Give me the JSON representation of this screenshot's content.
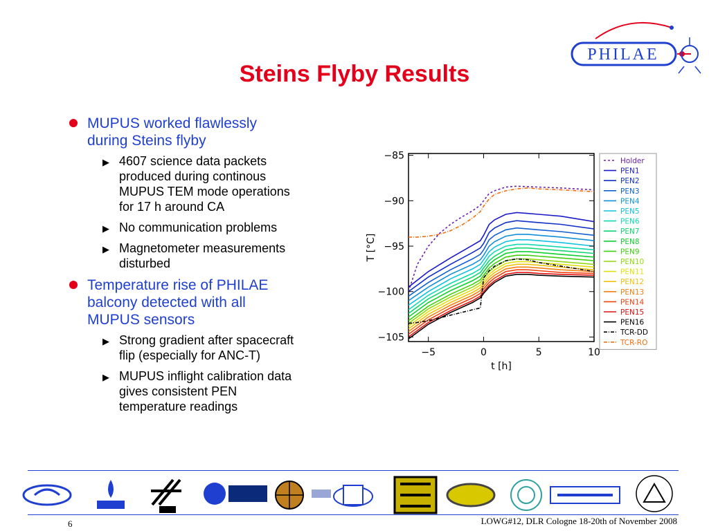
{
  "slide": {
    "title": "Steins Flyby Results",
    "page_number": "6",
    "footer": "LOWG#12, DLR Cologne 18-20th of  November 2008"
  },
  "brand": {
    "philae_logo_text": "PHILAE",
    "accent_red": "#e3001b",
    "accent_blue": "#1f3fd1"
  },
  "bullets": [
    {
      "text_lines": [
        "MUPUS worked flawlessly",
        "during Steins flyby"
      ],
      "sub": [
        {
          "lines": [
            "4607 science data packets",
            "produced during continous",
            "MUPUS TEM mode operations",
            "for 17 h around CA"
          ]
        },
        {
          "lines": [
            "No communication problems"
          ]
        },
        {
          "lines": [
            "Magnetometer measurements",
            "disturbed"
          ]
        }
      ]
    },
    {
      "text_lines": [
        "Temperature rise of PHILAE",
        "balcony detected with all",
        "MUPUS sensors"
      ],
      "sub": [
        {
          "lines": [
            "Strong gradient after spacecraft",
            "flip (especially for ANC-T)"
          ]
        },
        {
          "lines": [
            "MUPUS inflight calibration data",
            "gives consistent PEN",
            "temperature readings"
          ]
        }
      ]
    }
  ],
  "chart_data": {
    "type": "line",
    "xlabel": "t [h]",
    "ylabel": "T [°C]",
    "xlim": [
      -6.8,
      10
    ],
    "ylim": [
      -105.5,
      -84.8
    ],
    "xticks": [
      -5,
      0,
      5,
      10
    ],
    "yticks": [
      -85,
      -90,
      -95,
      -100,
      -105
    ],
    "legend_position": "right",
    "series": [
      {
        "name": "Holder",
        "color": "#6b1fb0",
        "dash": "dash",
        "x": [
          -6.8,
          -6,
          -5,
          -4,
          -3,
          -2,
          -1,
          -0.3,
          0,
          0.5,
          1,
          2,
          3,
          5,
          7,
          10
        ],
        "y": [
          -100,
          -97,
          -95,
          -93.6,
          -92.6,
          -91.8,
          -91.1,
          -90.5,
          -90,
          -89.2,
          -88.9,
          -88.5,
          -88.4,
          -88.5,
          -88.6,
          -88.8
        ]
      },
      {
        "name": "PEN1",
        "color": "#1a1ac8",
        "x": [
          -6.8,
          -5,
          -3,
          -1,
          -0.3,
          0,
          0.5,
          1,
          2,
          3,
          4,
          5,
          7,
          10
        ],
        "y": [
          -99.5,
          -97.8,
          -96.3,
          -94.9,
          -94.4,
          -93.8,
          -92.6,
          -92.1,
          -91.5,
          -91.3,
          -91.4,
          -91.5,
          -91.7,
          -92.3
        ]
      },
      {
        "name": "PEN2",
        "color": "#1030c8",
        "x": [
          -6.8,
          -5,
          -3,
          -1,
          -0.3,
          0,
          0.5,
          1,
          2,
          3,
          4,
          5,
          7,
          10
        ],
        "y": [
          -100.0,
          -98.4,
          -97.0,
          -95.7,
          -95.2,
          -94.7,
          -93.5,
          -93.0,
          -92.4,
          -92.2,
          -92.3,
          -92.4,
          -92.6,
          -93.1
        ]
      },
      {
        "name": "PEN3",
        "color": "#1060d0",
        "x": [
          -6.8,
          -5,
          -3,
          -1,
          -0.3,
          0,
          0.5,
          1,
          2,
          3,
          4,
          5,
          7,
          10
        ],
        "y": [
          -100.5,
          -99.0,
          -97.6,
          -96.4,
          -95.9,
          -95.4,
          -94.3,
          -93.8,
          -93.2,
          -93.0,
          -93.1,
          -93.2,
          -93.4,
          -93.8
        ]
      },
      {
        "name": "PEN4",
        "color": "#1090d8",
        "x": [
          -6.8,
          -5,
          -3,
          -1,
          -0.3,
          0,
          0.5,
          1,
          2,
          3,
          4,
          5,
          7,
          10
        ],
        "y": [
          -101.0,
          -99.5,
          -98.1,
          -97.0,
          -96.5,
          -96.0,
          -95.0,
          -94.5,
          -93.9,
          -93.7,
          -93.7,
          -93.8,
          -94.0,
          -94.4
        ]
      },
      {
        "name": "PEN5",
        "color": "#10c0e0",
        "x": [
          -6.8,
          -5,
          -3,
          -1,
          -0.3,
          0,
          0.5,
          1,
          2,
          3,
          4,
          5,
          7,
          10
        ],
        "y": [
          -101.5,
          -100.0,
          -98.6,
          -97.5,
          -97.0,
          -96.5,
          -95.6,
          -95.1,
          -94.5,
          -94.3,
          -94.3,
          -94.4,
          -94.6,
          -95.0
        ]
      },
      {
        "name": "PEN6",
        "color": "#10d8b0",
        "x": [
          -6.8,
          -5,
          -3,
          -1,
          -0.3,
          0,
          0.5,
          1,
          2,
          3,
          4,
          5,
          7,
          10
        ],
        "y": [
          -102.0,
          -100.4,
          -99.1,
          -98.0,
          -97.5,
          -97.0,
          -96.1,
          -95.6,
          -95.0,
          -94.8,
          -94.8,
          -94.9,
          -95.1,
          -95.4
        ]
      },
      {
        "name": "PEN7",
        "color": "#10d870",
        "x": [
          -6.8,
          -5,
          -3,
          -1,
          -0.3,
          0,
          0.5,
          1,
          2,
          3,
          4,
          5,
          7,
          10
        ],
        "y": [
          -102.4,
          -100.8,
          -99.5,
          -98.4,
          -97.9,
          -97.4,
          -96.6,
          -96.1,
          -95.4,
          -95.2,
          -95.2,
          -95.3,
          -95.5,
          -95.8
        ]
      },
      {
        "name": "PEN8",
        "color": "#10d030",
        "x": [
          -6.8,
          -5,
          -3,
          -1,
          -0.3,
          0,
          0.5,
          1,
          2,
          3,
          4,
          5,
          7,
          10
        ],
        "y": [
          -102.8,
          -101.2,
          -99.9,
          -98.8,
          -98.3,
          -97.8,
          -97.0,
          -96.5,
          -95.8,
          -95.6,
          -95.6,
          -95.7,
          -95.9,
          -96.2
        ]
      },
      {
        "name": "PEN9",
        "color": "#40d010",
        "x": [
          -6.8,
          -5,
          -3,
          -1,
          -0.3,
          0,
          0.5,
          1,
          2,
          3,
          4,
          5,
          7,
          10
        ],
        "y": [
          -103.2,
          -101.6,
          -100.3,
          -99.2,
          -98.7,
          -98.2,
          -97.4,
          -96.9,
          -96.2,
          -96.0,
          -96.0,
          -96.1,
          -96.3,
          -96.6
        ]
      },
      {
        "name": "PEN10",
        "color": "#90d810",
        "x": [
          -6.8,
          -5,
          -3,
          -1,
          -0.3,
          0,
          0.5,
          1,
          2,
          3,
          4,
          5,
          7,
          10
        ],
        "y": [
          -103.5,
          -101.9,
          -100.6,
          -99.5,
          -99.0,
          -98.5,
          -97.8,
          -97.3,
          -96.6,
          -96.4,
          -96.4,
          -96.5,
          -96.7,
          -97.0
        ]
      },
      {
        "name": "PEN11",
        "color": "#e0e010",
        "x": [
          -6.8,
          -5,
          -3,
          -1,
          -0.3,
          0,
          0.5,
          1,
          2,
          3,
          4,
          5,
          7,
          10
        ],
        "y": [
          -103.8,
          -102.2,
          -100.9,
          -99.8,
          -99.3,
          -98.8,
          -98.1,
          -97.6,
          -96.9,
          -96.7,
          -96.7,
          -96.8,
          -97.0,
          -97.3
        ]
      },
      {
        "name": "PEN12",
        "color": "#f0c010",
        "x": [
          -6.8,
          -5,
          -3,
          -1,
          -0.3,
          0,
          0.5,
          1,
          2,
          3,
          4,
          5,
          7,
          10
        ],
        "y": [
          -104.1,
          -102.5,
          -101.2,
          -100.1,
          -99.6,
          -99.1,
          -98.4,
          -97.9,
          -97.2,
          -97.0,
          -97.0,
          -97.1,
          -97.3,
          -97.6
        ]
      },
      {
        "name": "PEN13",
        "color": "#f08010",
        "x": [
          -6.8,
          -5,
          -3,
          -1,
          -0.3,
          0,
          0.5,
          1,
          2,
          3,
          4,
          5,
          7,
          10
        ],
        "y": [
          -104.4,
          -102.8,
          -101.5,
          -100.4,
          -99.9,
          -99.4,
          -98.7,
          -98.2,
          -97.5,
          -97.3,
          -97.3,
          -97.4,
          -97.6,
          -97.8
        ]
      },
      {
        "name": "PEN14",
        "color": "#f04010",
        "x": [
          -6.8,
          -5,
          -3,
          -1,
          -0.3,
          0,
          0.5,
          1,
          2,
          3,
          4,
          5,
          7,
          10
        ],
        "y": [
          -104.7,
          -103.1,
          -101.8,
          -100.7,
          -100.2,
          -99.7,
          -99.0,
          -98.5,
          -97.8,
          -97.6,
          -97.6,
          -97.7,
          -97.9,
          -98.0
        ]
      },
      {
        "name": "PEN15",
        "color": "#e01010",
        "x": [
          -6.8,
          -5,
          -3,
          -1,
          -0.3,
          0,
          0.5,
          1,
          2,
          3,
          4,
          5,
          7,
          10
        ],
        "y": [
          -105.0,
          -103.4,
          -102.1,
          -101.0,
          -100.5,
          -100.0,
          -99.3,
          -98.8,
          -98.1,
          -97.9,
          -97.9,
          -98.0,
          -98.1,
          -98.2
        ]
      },
      {
        "name": "PEN16",
        "color": "#000000",
        "x": [
          -6.8,
          -5,
          -3,
          -1,
          -0.3,
          0,
          0.5,
          1,
          2,
          3,
          4,
          5,
          7,
          10
        ],
        "y": [
          -105.2,
          -103.6,
          -102.3,
          -101.2,
          -100.7,
          -100.2,
          -99.5,
          -99.0,
          -98.3,
          -98.1,
          -98.1,
          -98.2,
          -98.3,
          -98.4
        ]
      },
      {
        "name": "TCR-DD",
        "color": "#000000",
        "dash": "dashdot",
        "x": [
          -6.8,
          -6,
          -5,
          -4,
          -3,
          -2,
          -1,
          -0.3,
          0,
          0.5,
          1,
          2,
          3,
          4,
          5,
          7,
          10
        ],
        "y": [
          -103.5,
          -103.4,
          -103.2,
          -102.9,
          -102.6,
          -102.3,
          -102.0,
          -101.8,
          -98.5,
          -97.7,
          -97.2,
          -96.6,
          -96.4,
          -96.5,
          -96.8,
          -97.2,
          -97.8
        ]
      },
      {
        "name": "TCR-RO",
        "color": "#f07010",
        "dash": "dashdot",
        "x": [
          -6.8,
          -6,
          -5,
          -4,
          -3,
          -2,
          -1,
          -0.3,
          0,
          0.5,
          1,
          2,
          3,
          4,
          5,
          7,
          10
        ],
        "y": [
          -94,
          -94,
          -93.9,
          -93.7,
          -93.3,
          -92.7,
          -91.9,
          -91.2,
          -90.6,
          -89.8,
          -89.3,
          -88.9,
          -88.7,
          -88.6,
          -88.7,
          -88.8,
          -89.0
        ]
      }
    ]
  }
}
